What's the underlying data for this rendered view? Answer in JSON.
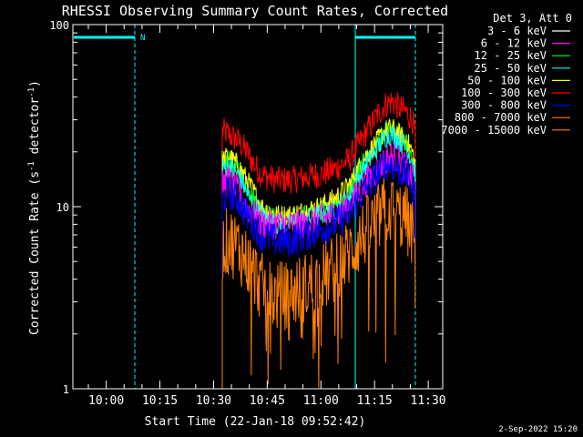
{
  "chart_data": {
    "type": "line",
    "title": "RHESSI Observing Summary Count Rates, Corrected",
    "xlabel": "Start Time (22-Jan-18 09:52:42)",
    "ylabel_main": "Corrected Count Rate (s",
    "ylabel_sup1": "-1",
    "ylabel_mid": " detector",
    "ylabel_sup2": "-1",
    "ylabel_end": ")",
    "y_scale": "log",
    "ylim": [
      1,
      100
    ],
    "y_ticks": [
      {
        "value": 1,
        "label": "1"
      },
      {
        "value": 10,
        "label": "10"
      },
      {
        "value": 100,
        "label": "100"
      }
    ],
    "x_ticks": [
      "10:00",
      "10:15",
      "10:30",
      "10:45",
      "11:00",
      "11:15",
      "11:30"
    ],
    "legend_title": "Det 3, Att 0",
    "legend": [
      {
        "label": "3 - 6 keV",
        "color": "#ffffff"
      },
      {
        "label": "6 - 12 keV",
        "color": "#ff00ff"
      },
      {
        "label": "12 - 25 keV",
        "color": "#00ff00"
      },
      {
        "label": "25 - 50 keV",
        "color": "#00ffff"
      },
      {
        "label": "50 - 100 keV",
        "color": "#ffff00"
      },
      {
        "label": "100 - 300 keV",
        "color": "#ff0000"
      },
      {
        "label": "300 - 800 keV",
        "color": "#0000ff"
      },
      {
        "label": "800 - 7000 keV",
        "color": "#ff8000"
      },
      {
        "label": "7000 - 15000 keV",
        "color": "#ff8000"
      }
    ],
    "flags": [
      {
        "label": "N",
        "color": "#00ffff"
      }
    ],
    "date_stamp": "2-Sep-2022 15:20",
    "series_profiles": [
      {
        "name": "100 - 300 keV",
        "color": "#ff0000",
        "base": [
          [
            10.3,
            26
          ],
          [
            10.75,
            25
          ],
          [
            11.0,
            24
          ],
          [
            11.4,
            23
          ],
          [
            12.0,
            20
          ],
          [
            12.5,
            17
          ],
          [
            13.0,
            15
          ],
          [
            14.0,
            14
          ],
          [
            15.0,
            14
          ],
          [
            16.0,
            14.5
          ],
          [
            17.0,
            15
          ],
          [
            18.0,
            16
          ],
          [
            19.0,
            18
          ],
          [
            20.0,
            24
          ],
          [
            21.0,
            32
          ],
          [
            21.5,
            36
          ],
          [
            22.0,
            38
          ],
          [
            22.5,
            35
          ],
          [
            23.0,
            33
          ],
          [
            23.4,
            30
          ],
          [
            23.6,
            25
          ]
        ],
        "noise": 0.18
      },
      {
        "name": "12 - 25 keV",
        "color": "#00ff00",
        "base": [
          [
            10.3,
            17
          ],
          [
            10.75,
            18
          ],
          [
            11.0,
            17
          ],
          [
            11.4,
            16
          ],
          [
            12.0,
            13
          ],
          [
            12.5,
            11
          ],
          [
            13.0,
            9.5
          ],
          [
            14.0,
            8.5
          ],
          [
            15.0,
            8.5
          ],
          [
            16.0,
            9
          ],
          [
            17.0,
            9.5
          ],
          [
            18.0,
            10
          ],
          [
            19.0,
            12
          ],
          [
            20.0,
            17
          ],
          [
            21.0,
            22
          ],
          [
            21.5,
            25
          ],
          [
            22.0,
            26
          ],
          [
            22.5,
            24
          ],
          [
            23.0,
            22
          ],
          [
            23.4,
            19
          ],
          [
            23.6,
            16
          ]
        ],
        "noise": 0.14
      },
      {
        "name": "50 - 100 keV",
        "color": "#ffff00",
        "base": [
          [
            10.3,
            18
          ],
          [
            10.75,
            19
          ],
          [
            11.0,
            18
          ],
          [
            11.4,
            17
          ],
          [
            12.0,
            14
          ],
          [
            12.5,
            12
          ],
          [
            13.0,
            10
          ],
          [
            14.0,
            9
          ],
          [
            15.0,
            9
          ],
          [
            16.0,
            9.5
          ],
          [
            17.0,
            10
          ],
          [
            18.0,
            11
          ],
          [
            19.0,
            13
          ],
          [
            20.0,
            18
          ],
          [
            21.0,
            23
          ],
          [
            21.5,
            26
          ],
          [
            22.0,
            27
          ],
          [
            22.5,
            25
          ],
          [
            23.0,
            23
          ],
          [
            23.4,
            20
          ],
          [
            23.6,
            17
          ]
        ],
        "noise": 0.14
      },
      {
        "name": "25 - 50 keV",
        "color": "#00ffff",
        "base": [
          [
            10.3,
            16
          ],
          [
            10.75,
            17
          ],
          [
            11.0,
            16
          ],
          [
            11.4,
            15
          ],
          [
            12.0,
            12
          ],
          [
            12.5,
            10
          ],
          [
            13.0,
            9
          ],
          [
            14.0,
            8
          ],
          [
            15.0,
            8
          ],
          [
            16.0,
            8.5
          ],
          [
            17.0,
            9
          ],
          [
            18.0,
            9.5
          ],
          [
            19.0,
            11
          ],
          [
            20.0,
            16
          ],
          [
            21.0,
            21
          ],
          [
            21.5,
            24
          ],
          [
            22.0,
            25
          ],
          [
            22.5,
            23
          ],
          [
            23.0,
            21
          ],
          [
            23.4,
            18
          ],
          [
            23.6,
            15
          ]
        ],
        "noise": 0.14
      },
      {
        "name": "6 - 12 keV",
        "color": "#ff00ff",
        "base": [
          [
            10.3,
            13
          ],
          [
            10.75,
            14
          ],
          [
            11.0,
            13
          ],
          [
            11.4,
            12
          ],
          [
            12.0,
            10
          ],
          [
            12.5,
            9
          ],
          [
            13.0,
            8
          ],
          [
            14.0,
            8
          ],
          [
            15.0,
            8
          ],
          [
            16.0,
            8
          ],
          [
            17.0,
            8.5
          ],
          [
            18.0,
            9
          ],
          [
            19.0,
            10
          ],
          [
            20.0,
            13
          ],
          [
            21.0,
            16
          ],
          [
            21.5,
            18
          ],
          [
            22.0,
            19
          ],
          [
            22.5,
            18
          ],
          [
            23.0,
            16
          ],
          [
            23.4,
            14
          ],
          [
            23.6,
            12
          ]
        ],
        "noise": 0.2
      },
      {
        "name": "300 - 800 keV",
        "color": "#0000ff",
        "base": [
          [
            10.3,
            11
          ],
          [
            10.75,
            12
          ],
          [
            11.0,
            11.5
          ],
          [
            11.4,
            11
          ],
          [
            12.0,
            9
          ],
          [
            12.5,
            8
          ],
          [
            13.0,
            7
          ],
          [
            14.0,
            6.5
          ],
          [
            15.0,
            6.5
          ],
          [
            16.0,
            7
          ],
          [
            17.0,
            7.5
          ],
          [
            18.0,
            8
          ],
          [
            19.0,
            9
          ],
          [
            20.0,
            12
          ],
          [
            21.0,
            15
          ],
          [
            21.5,
            17
          ],
          [
            22.0,
            17
          ],
          [
            22.5,
            16
          ],
          [
            23.0,
            15
          ],
          [
            23.4,
            13
          ],
          [
            23.6,
            11
          ]
        ],
        "noise": 0.22
      },
      {
        "name": "800 - 7000 keV",
        "color": "#ff8000",
        "base": [
          [
            10.3,
            6
          ],
          [
            10.75,
            6.5
          ],
          [
            11.0,
            6.3
          ],
          [
            11.4,
            6
          ],
          [
            12.0,
            5
          ],
          [
            12.5,
            4.3
          ],
          [
            13.0,
            3.6
          ],
          [
            14.0,
            3.2
          ],
          [
            15.0,
            3.3
          ],
          [
            16.0,
            3.6
          ],
          [
            17.0,
            4
          ],
          [
            18.0,
            4.5
          ],
          [
            19.0,
            5.5
          ],
          [
            20.0,
            7
          ],
          [
            21.0,
            8.5
          ],
          [
            21.5,
            9.5
          ],
          [
            22.0,
            9.5
          ],
          [
            22.5,
            9
          ],
          [
            23.0,
            8.5
          ],
          [
            23.4,
            7
          ],
          [
            23.6,
            6
          ]
        ],
        "noise": 0.45
      }
    ]
  }
}
